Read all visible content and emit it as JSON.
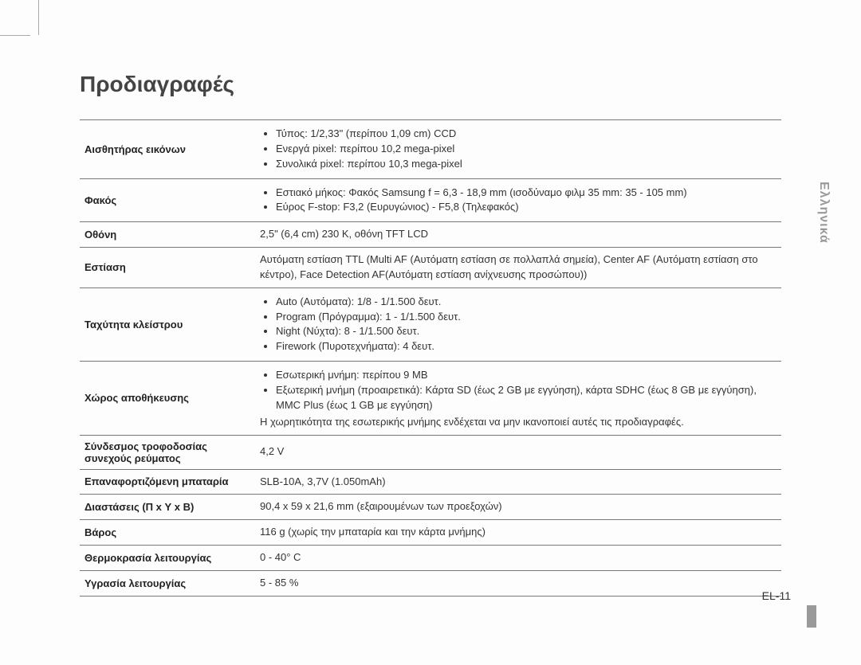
{
  "title": "Προδιαγραφές",
  "sideLang": "Ελληνικά",
  "pageNum": "EL-11",
  "rows": [
    {
      "label": "Αισθητήρας εικόνων",
      "bullets": [
        "Τύπος: 1/2,33\" (περίπου 1,09 cm) CCD",
        "Ενεργά pixel: περίπου 10,2 mega-pixel",
        "Συνολικά pixel: περίπου 10,3 mega-pixel"
      ]
    },
    {
      "label": "Φακός",
      "bullets": [
        "Εστιακό μήκος: Φακός Samsung f = 6,3 - 18,9 mm (ισοδύναμο φιλμ 35 mm: 35 - 105 mm)",
        "Εύρος F-stop: F3,2 (Ευρυγώνιος) - F5,8 (Τηλεφακός)"
      ]
    },
    {
      "label": "Οθόνη",
      "text": "2,5\" (6,4 cm) 230 K, οθόνη TFT LCD"
    },
    {
      "label": "Εστίαση",
      "text": "Αυτόματη εστίαση TTL (Multi AF (Αυτόματη εστίαση σε πολλαπλά σημεία), Center AF (Αυτόματη εστίαση στο κέντρο), Face Detection AF(Αυτόματη εστίαση ανίχνευσης προσώπου))"
    },
    {
      "label": "Ταχύτητα κλείστρου",
      "bullets": [
        "Auto (Αυτόματα): 1/8 - 1/1.500 δευτ.",
        "Program (Πρόγραμμα): 1 - 1/1.500 δευτ.",
        "Night (Νύχτα): 8 - 1/1.500 δευτ.",
        "Firework (Πυροτεχνήματα): 4 δευτ."
      ]
    },
    {
      "label": "Χώρος αποθήκευσης",
      "bullets": [
        "Εσωτερική μνήμη: περίπου 9 MB",
        "Εξωτερική μνήμη (προαιρετικά): Κάρτα SD (έως 2 GB με εγγύηση), κάρτα SDHC (έως 8 GB με εγγύηση), MMC Plus (έως 1 GB με εγγύηση)"
      ],
      "after": "Η χωρητικότητα της εσωτερικής μνήμης ενδέχεται να μην ικανοποιεί αυτές τις προδιαγραφές."
    },
    {
      "label": "Σύνδεσμος τροφοδοσίας συνεχούς ρεύματος",
      "text": "4,2 V"
    },
    {
      "label": "Επαναφορτιζόμενη μπαταρία",
      "text": "SLB-10A, 3,7V (1.050mAh)"
    },
    {
      "label": "Διαστάσεις (Π x Υ x Β)",
      "text": "90,4 x 59 x 21,6 mm (εξαιρουμένων των προεξοχών)"
    },
    {
      "label": "Βάρος",
      "text": "116 g (χωρίς την μπαταρία και την κάρτα μνήμης)"
    },
    {
      "label": "Θερμοκρασία λειτουργίας",
      "text": "0 - 40° C"
    },
    {
      "label": "Υγρασία λειτουργίας",
      "text": "5 - 85 %"
    }
  ]
}
